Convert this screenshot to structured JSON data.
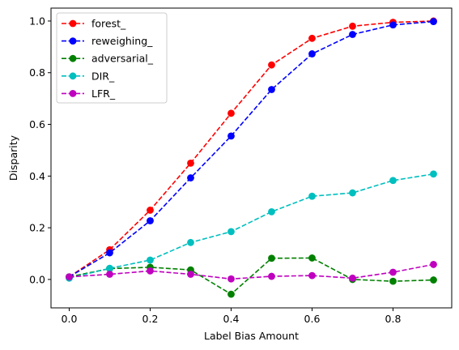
{
  "chart_data": {
    "type": "line",
    "title": "",
    "xlabel": "Label Bias Amount",
    "ylabel": "Disparity",
    "xlim": [
      -0.045,
      0.945
    ],
    "ylim": [
      -0.11,
      1.05
    ],
    "xticks": [
      0.0,
      0.2,
      0.4,
      0.6,
      0.8
    ],
    "xtick_labels": [
      "0.0",
      "0.2",
      "0.4",
      "0.6",
      "0.8"
    ],
    "yticks": [
      0.0,
      0.2,
      0.4,
      0.6,
      0.8,
      1.0
    ],
    "ytick_labels": [
      "0.0",
      "0.2",
      "0.4",
      "0.6",
      "0.8",
      "1.0"
    ],
    "grid": false,
    "legend_position": "top-left",
    "x": [
      0.0,
      0.1,
      0.2,
      0.3,
      0.4,
      0.5,
      0.6,
      0.7,
      0.8,
      0.9
    ],
    "series": [
      {
        "name": "forest_",
        "color": "#ff0000",
        "values": [
          0.01,
          0.115,
          0.268,
          0.45,
          0.643,
          0.83,
          0.933,
          0.98,
          0.995,
          1.0
        ]
      },
      {
        "name": "reweighing_",
        "color": "#0000ff",
        "values": [
          0.01,
          0.103,
          0.227,
          0.393,
          0.555,
          0.735,
          0.873,
          0.948,
          0.985,
          0.998
        ]
      },
      {
        "name": "adversarial_",
        "color": "#008000",
        "values": [
          0.01,
          0.042,
          0.047,
          0.037,
          -0.057,
          0.082,
          0.083,
          0.0,
          -0.007,
          -0.002
        ]
      },
      {
        "name": "DIR_",
        "color": "#00bfbf",
        "values": [
          0.005,
          0.043,
          0.075,
          0.143,
          0.185,
          0.262,
          0.322,
          0.335,
          0.383,
          0.408
        ]
      },
      {
        "name": "LFR_",
        "color": "#bf00bf",
        "values": [
          0.01,
          0.02,
          0.033,
          0.02,
          0.002,
          0.012,
          0.015,
          0.005,
          0.028,
          0.058
        ]
      }
    ]
  }
}
